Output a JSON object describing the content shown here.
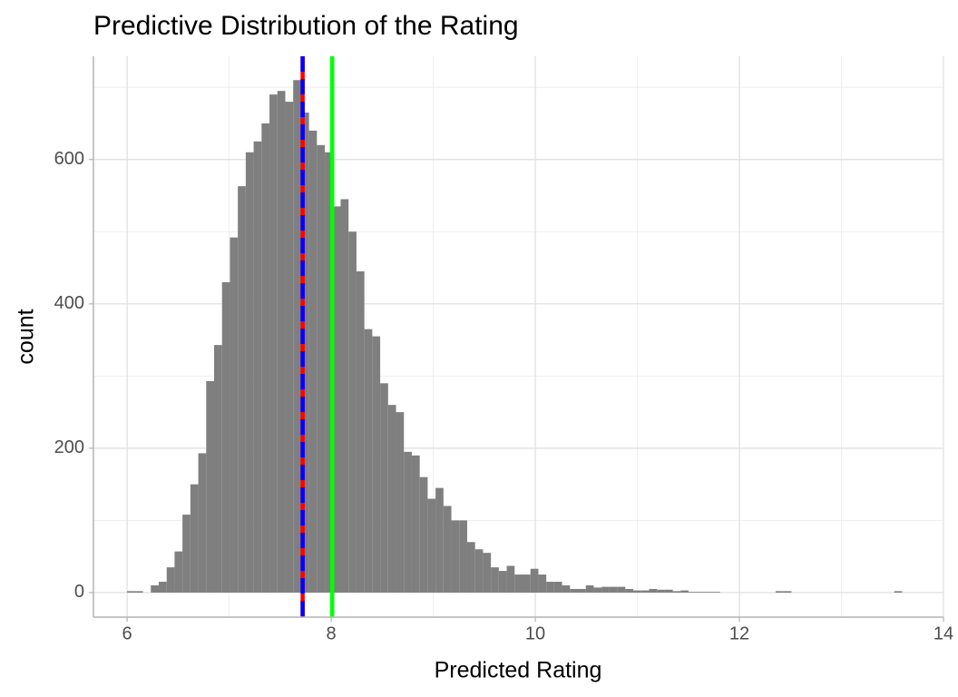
{
  "chart_data": {
    "type": "histogram",
    "title": "Predictive Distribution of the Rating",
    "x_label": "Predicted Rating",
    "y_label": "count",
    "color": "#7f7f7f",
    "bins": [
      6,
      6.0775,
      6.155,
      6.2325,
      6.31,
      6.3875,
      6.465,
      6.5425,
      6.62,
      6.6975,
      6.775,
      6.8525,
      6.93,
      7.0075,
      7.085,
      7.1625,
      7.24,
      7.3175,
      7.395,
      7.4725,
      7.55,
      7.6275,
      7.705,
      7.7825,
      7.86,
      7.9375,
      8.015,
      8.0925,
      8.17,
      8.2475,
      8.325,
      8.4025,
      8.48,
      8.5575,
      8.635,
      8.7125,
      8.79,
      8.8675,
      8.945,
      9.0225,
      9.1,
      9.1775,
      9.255,
      9.3325,
      9.41,
      9.4875,
      9.565,
      9.6425,
      9.72,
      9.7975,
      9.875,
      9.9525,
      10.03,
      10.1075,
      10.185,
      10.2625,
      10.34,
      10.4175,
      10.495,
      10.5725,
      10.65,
      10.7275,
      10.805,
      10.8825,
      10.96,
      11.0375,
      11.115,
      11.1925,
      11.27,
      11.3475,
      11.425,
      11.5025,
      11.58,
      11.6575,
      11.735,
      11.8125,
      11.89,
      11.9675,
      12.045,
      12.1225,
      12.2,
      12.2775,
      12.355,
      12.4325,
      12.51,
      12.5875,
      12.665,
      12.7425,
      12.82,
      12.8975,
      12.975,
      13.0525,
      13.13,
      13.2075,
      13.285,
      13.3625,
      13.44,
      13.5175,
      13.595,
      13.6725,
      13.75
    ],
    "values": [
      2,
      2,
      0,
      10,
      15,
      35,
      57,
      108,
      150,
      193,
      293,
      343,
      430,
      492,
      563,
      610,
      625,
      650,
      690,
      695,
      680,
      710,
      665,
      640,
      620,
      610,
      535,
      545,
      500,
      445,
      365,
      355,
      290,
      260,
      250,
      195,
      190,
      160,
      130,
      145,
      120,
      100,
      100,
      70,
      60,
      55,
      35,
      30,
      37,
      25,
      25,
      33,
      25,
      15,
      15,
      10,
      5,
      5,
      10,
      7,
      8,
      8,
      8,
      5,
      3,
      3,
      5,
      4,
      4,
      2,
      3,
      1,
      1,
      1,
      1,
      0,
      0,
      0,
      0,
      0,
      0,
      0,
      2,
      2,
      0,
      0,
      0,
      0,
      0,
      0,
      0,
      0,
      0,
      0,
      0,
      0,
      0,
      2,
      0,
      0
    ],
    "vlines": [
      {
        "x": 7.72,
        "color": "#ff0000",
        "dash": false
      },
      {
        "x": 7.72,
        "color": "#0000ff",
        "dash": true
      },
      {
        "x": 8.01,
        "color": "#00ff00",
        "dash": false
      }
    ],
    "xlim": [
      5.67,
      14.0
    ],
    "ylim": [
      -34,
      743
    ],
    "xticks": [
      6,
      8,
      10,
      12,
      14
    ],
    "yticks": [
      0,
      200,
      400,
      600
    ],
    "x_minor_grid": [
      7,
      9,
      11,
      13
    ],
    "y_minor_grid": [
      100,
      300,
      500,
      700
    ],
    "grid": true
  }
}
